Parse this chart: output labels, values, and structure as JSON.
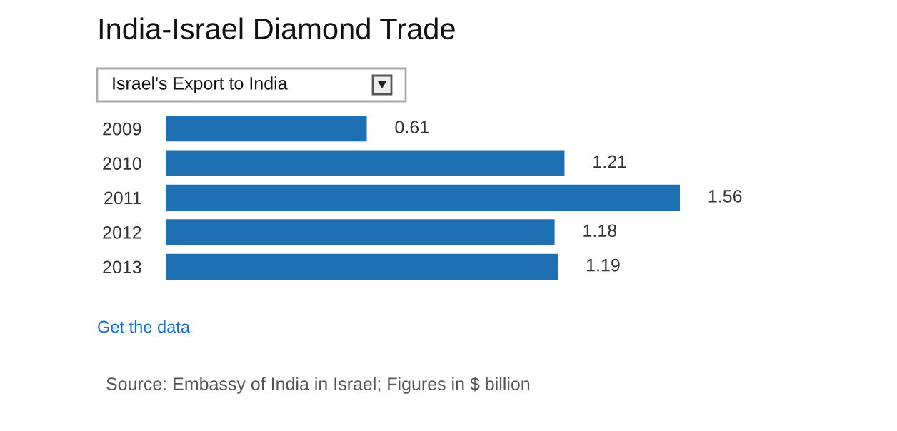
{
  "chart_data": {
    "type": "bar",
    "orientation": "horizontal",
    "title": "India-Israel Diamond Trade",
    "subtitle": "Israel's Export to India",
    "categories": [
      "2009",
      "2010",
      "2011",
      "2012",
      "2013"
    ],
    "values": [
      0.61,
      1.21,
      1.56,
      1.18,
      1.19
    ],
    "color": "#1f70b2",
    "data_labels": true,
    "tick_labels": "y",
    "grid": false,
    "legend": false,
    "annotations": [
      "Get the data",
      "Source: Embassy of India in Israel; Figures in $ billion"
    ]
  }
}
